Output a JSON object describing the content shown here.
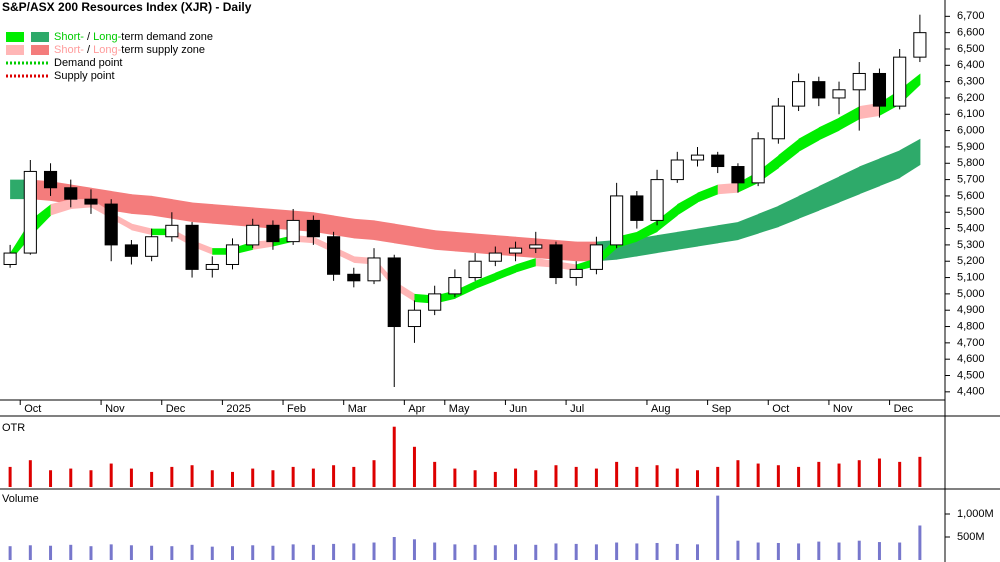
{
  "chart_data": {
    "type": "candlestick",
    "title": "S&P/ASX 200 Resources Index (XJR) - Daily",
    "legend": [
      {
        "swatches": [
          "#00ee00",
          "#2eaa6a"
        ],
        "parts": [
          "Short-",
          " / ",
          "Long-",
          "term demand zone"
        ],
        "part_colors": [
          "#00cc00",
          "#000000",
          "#00cc00",
          "#000000"
        ]
      },
      {
        "swatches": [
          "#ffb6b6",
          "#f47c7c"
        ],
        "parts": [
          "Short-",
          " / ",
          "Long-",
          "term supply zone"
        ],
        "part_colors": [
          "#ff9c9c",
          "#000000",
          "#ff9c9c",
          "#000000"
        ]
      },
      {
        "line": "#00cc00",
        "parts": [
          "Demand point"
        ],
        "part_colors": [
          "#000000"
        ]
      },
      {
        "line": "#dd0000",
        "parts": [
          "Supply point"
        ],
        "part_colors": [
          "#000000"
        ]
      }
    ],
    "categories": [
      null,
      "Oct",
      null,
      null,
      null,
      "Nov",
      null,
      null,
      "Dec",
      null,
      null,
      "2025",
      null,
      null,
      "Feb",
      null,
      null,
      "Mar",
      null,
      null,
      "Apr",
      null,
      "May",
      null,
      null,
      "Jun",
      null,
      null,
      "Jul",
      null,
      null,
      null,
      "Aug",
      null,
      null,
      "Sep",
      null,
      null,
      "Oct",
      null,
      null,
      "Nov",
      null,
      null,
      "Dec",
      null
    ],
    "open": [
      5180,
      5250,
      5750,
      5650,
      5580,
      5550,
      5300,
      5230,
      5350,
      5420,
      5150,
      5180,
      5300,
      5420,
      5320,
      5450,
      5350,
      5120,
      5080,
      5220,
      4800,
      4900,
      5000,
      5100,
      5200,
      5250,
      5280,
      5300,
      5100,
      5150,
      5300,
      5600,
      5450,
      5700,
      5820,
      5850,
      5780,
      5680,
      5950,
      6150,
      6300,
      6200,
      6250,
      6350,
      6150,
      6450
    ],
    "high": [
      5300,
      5820,
      5800,
      5700,
      5640,
      5580,
      5330,
      5400,
      5500,
      5440,
      5230,
      5340,
      5460,
      5450,
      5520,
      5480,
      5380,
      5160,
      5280,
      5240,
      4960,
      5050,
      5150,
      5250,
      5290,
      5320,
      5380,
      5320,
      5200,
      5350,
      5680,
      5630,
      5760,
      5870,
      5900,
      5870,
      5800,
      5990,
      6200,
      6350,
      6330,
      6300,
      6420,
      6380,
      6500,
      6710
    ],
    "low": [
      5160,
      5240,
      5600,
      5530,
      5490,
      5200,
      5180,
      5200,
      5320,
      5100,
      5100,
      5150,
      5280,
      5270,
      5300,
      5300,
      5080,
      5040,
      5060,
      4430,
      4700,
      4870,
      4980,
      5080,
      5170,
      5200,
      5250,
      5060,
      5050,
      5120,
      5280,
      5400,
      5420,
      5680,
      5780,
      5740,
      5620,
      5660,
      5920,
      6120,
      6150,
      6100,
      6000,
      6080,
      6130,
      6420
    ],
    "close": [
      5250,
      5750,
      5650,
      5580,
      5550,
      5300,
      5230,
      5350,
      5420,
      5150,
      5180,
      5300,
      5420,
      5320,
      5450,
      5350,
      5120,
      5080,
      5220,
      4800,
      4900,
      5000,
      5100,
      5200,
      5250,
      5280,
      5300,
      5100,
      5150,
      5300,
      5600,
      5450,
      5700,
      5820,
      5850,
      5780,
      5680,
      5950,
      6150,
      6300,
      6200,
      6250,
      6350,
      6150,
      6450,
      6600
    ],
    "ylim": [
      4350,
      6800
    ],
    "yticks": [
      {
        "value": 4400,
        "label": "4,400"
      },
      {
        "value": 4500,
        "label": "4,500"
      },
      {
        "value": 4600,
        "label": "4,600"
      },
      {
        "value": 4700,
        "label": "4,700"
      },
      {
        "value": 4800,
        "label": "4,800"
      },
      {
        "value": 4900,
        "label": "4,900"
      },
      {
        "value": 5000,
        "label": "5,000"
      },
      {
        "value": 5100,
        "label": "5,100"
      },
      {
        "value": 5200,
        "label": "5,200"
      },
      {
        "value": 5300,
        "label": "5,300"
      },
      {
        "value": 5400,
        "label": "5,400"
      },
      {
        "value": 5500,
        "label": "5,500"
      },
      {
        "value": 5600,
        "label": "5,600"
      },
      {
        "value": 5700,
        "label": "5,700"
      },
      {
        "value": 5800,
        "label": "5,800"
      },
      {
        "value": 5900,
        "label": "5,900"
      },
      {
        "value": 6000,
        "label": "6,000"
      },
      {
        "value": 6100,
        "label": "6,100"
      },
      {
        "value": 6200,
        "label": "6,200"
      },
      {
        "value": 6300,
        "label": "6,300"
      },
      {
        "value": 6400,
        "label": "6,400"
      },
      {
        "value": 6500,
        "label": "6,500"
      },
      {
        "value": 6600,
        "label": "6,600"
      },
      {
        "value": 6700,
        "label": "6,700"
      }
    ],
    "zones": [
      {
        "upper": [
          5700,
          5700,
          5690,
          5670,
          5650,
          5630,
          5610,
          5600,
          5580,
          5560,
          5550,
          5540,
          5530,
          5520,
          5510,
          5500,
          5480,
          5460,
          5450,
          5430,
          5410,
          5390,
          5380,
          5370,
          5360,
          5350,
          5340,
          5330,
          5320,
          5320,
          5330,
          5340,
          5360,
          5380,
          5400,
          5420,
          5440,
          5490,
          5540,
          5600,
          5660,
          5720,
          5780,
          5830,
          5880,
          5950
        ],
        "lower": [
          5580,
          5580,
          5570,
          5550,
          5530,
          5510,
          5490,
          5480,
          5460,
          5440,
          5430,
          5420,
          5410,
          5400,
          5390,
          5380,
          5360,
          5340,
          5330,
          5310,
          5290,
          5270,
          5260,
          5250,
          5240,
          5230,
          5220,
          5210,
          5200,
          5200,
          5210,
          5230,
          5250,
          5270,
          5290,
          5310,
          5330,
          5370,
          5410,
          5460,
          5510,
          5560,
          5610,
          5660,
          5710,
          5790
        ],
        "demand_color": "#2eaa6a",
        "supply_color": "#f47c7c"
      },
      {
        "upper": [
          5250,
          5450,
          5550,
          5580,
          5580,
          5500,
          5430,
          5400,
          5400,
          5330,
          5280,
          5280,
          5320,
          5330,
          5360,
          5350,
          5290,
          5230,
          5220,
          5080,
          5000,
          4990,
          5020,
          5080,
          5130,
          5180,
          5220,
          5200,
          5180,
          5220,
          5350,
          5380,
          5450,
          5550,
          5620,
          5670,
          5680,
          5750,
          5850,
          5950,
          6020,
          6080,
          6150,
          6170,
          6250,
          6350
        ],
        "lower": [
          5200,
          5350,
          5480,
          5520,
          5530,
          5460,
          5390,
          5360,
          5360,
          5290,
          5240,
          5240,
          5270,
          5290,
          5320,
          5310,
          5250,
          5190,
          5180,
          5030,
          4950,
          4940,
          4970,
          5030,
          5080,
          5130,
          5170,
          5160,
          5140,
          5170,
          5280,
          5320,
          5380,
          5480,
          5560,
          5610,
          5620,
          5680,
          5770,
          5870,
          5940,
          6000,
          6070,
          6090,
          6160,
          6280
        ],
        "demand_color": "#00ee00",
        "supply_color": "#ffb6b6"
      }
    ],
    "panels": [
      {
        "label": "OTR",
        "color": "#dd0000",
        "ylim": [
          0,
          4
        ],
        "values": [
          1.2,
          1.6,
          1,
          1.1,
          1,
          1.4,
          1.1,
          0.9,
          1.2,
          1.3,
          1,
          0.9,
          1.1,
          1,
          1.2,
          1.1,
          1.3,
          1.2,
          1.6,
          3.6,
          2.4,
          1.5,
          1.1,
          1,
          0.9,
          1.1,
          1,
          1.3,
          1.2,
          1.1,
          1.5,
          1.2,
          1.3,
          1.1,
          1,
          1.2,
          1.6,
          1.4,
          1.3,
          1.2,
          1.5,
          1.4,
          1.6,
          1.7,
          1.5,
          1.8
        ]
      },
      {
        "label": "Volume",
        "color": "#7777cc",
        "ylim": [
          0,
          1500
        ],
        "yticks": [
          {
            "value": 500,
            "label": "500M"
          },
          {
            "value": 1000,
            "label": "1,000M"
          }
        ],
        "values": [
          300,
          320,
          310,
          330,
          300,
          340,
          320,
          310,
          300,
          330,
          290,
          300,
          320,
          310,
          340,
          330,
          350,
          360,
          380,
          500,
          450,
          380,
          340,
          330,
          320,
          340,
          330,
          360,
          350,
          340,
          380,
          360,
          370,
          350,
          340,
          1400,
          420,
          380,
          370,
          360,
          400,
          380,
          420,
          390,
          380,
          750
        ]
      }
    ]
  }
}
